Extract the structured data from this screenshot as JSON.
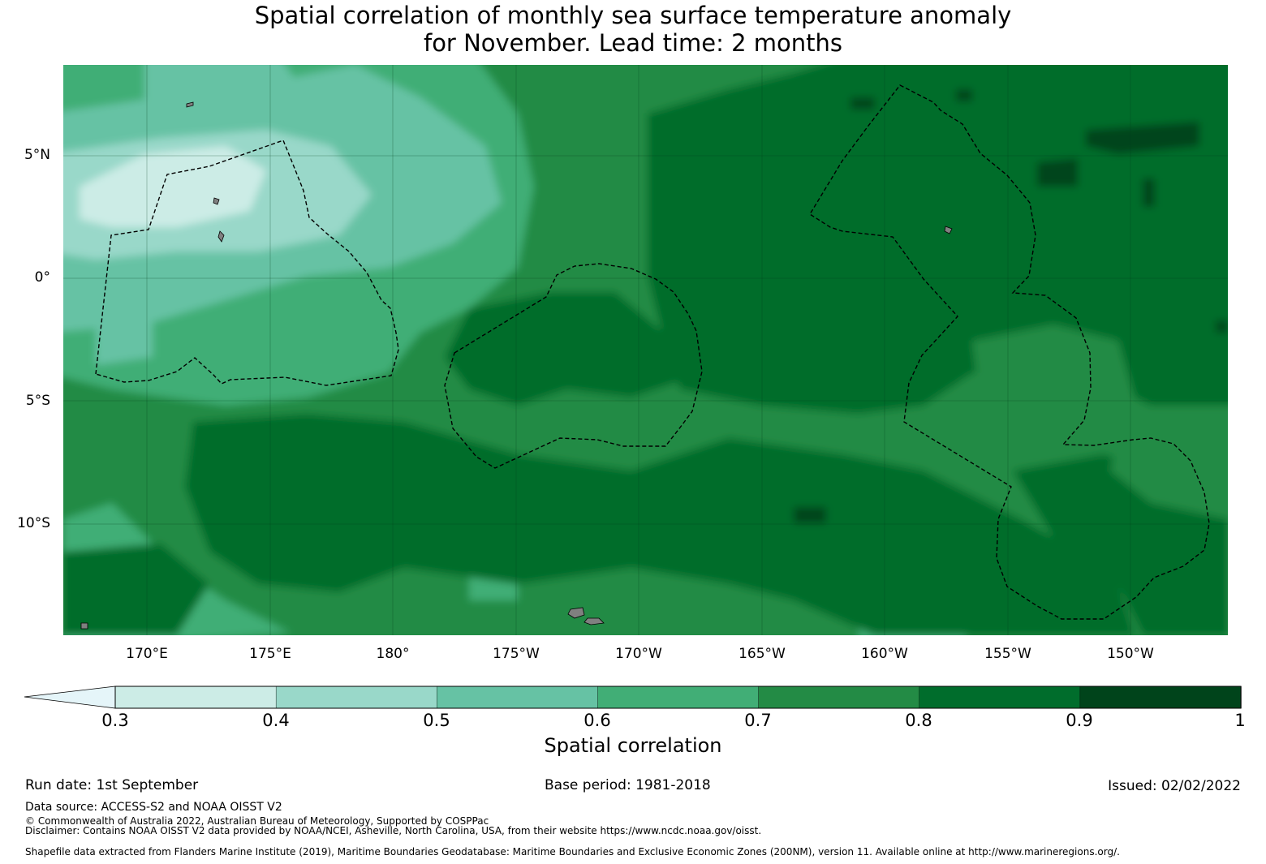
{
  "title": {
    "line1": "Spatial correlation of monthly sea surface temperature anomaly",
    "line2": "for November. Lead time: 2 months"
  },
  "map": {
    "latitude_labels": [
      "5°N",
      "0°",
      "5°S",
      "10°S"
    ],
    "longitude_labels": [
      "170°E",
      "175°E",
      "180°",
      "175°W",
      "170°W",
      "165°W",
      "160°W",
      "155°W",
      "150°W"
    ],
    "boundary_style": "dashed black EEZ outlines",
    "land_color": "#808080"
  },
  "colorbar": {
    "ticks": [
      "0.3",
      "0.4",
      "0.5",
      "0.6",
      "0.7",
      "0.8",
      "0.9",
      "1"
    ],
    "colors": [
      "#e5f5f9",
      "#ccece6",
      "#99d8c9",
      "#66c2a4",
      "#41ae76",
      "#238b45",
      "#006d2c",
      "#00441b"
    ],
    "extend": "min",
    "label": "Spatial correlation"
  },
  "footer": {
    "run_date": "Run date: 1st September",
    "base_period": "Base period: 1981-2018",
    "issued": "Issued: 02/02/2022",
    "data_source": "Data source: ACCESS-S2 and NOAA OISST V2",
    "copyright": "© Commonwealth of Australia 2022, Australian Bureau of Meteorology, Supported by COSPPac",
    "disclaimer": "Disclaimer: Contains NOAA OISST V2 data provided by NOAA/NCEI, Asheville, North Carolina, USA, from their website https://www.ncdc.noaa.gov/oisst.",
    "shapefile": "Shapefile data extracted from Flanders Marine Institute (2019), Maritime Boundaries Geodatabase: Maritime Boundaries and Exclusive Economic Zones (200NM), version 11. Available online at http://www.marineregions.org/."
  }
}
